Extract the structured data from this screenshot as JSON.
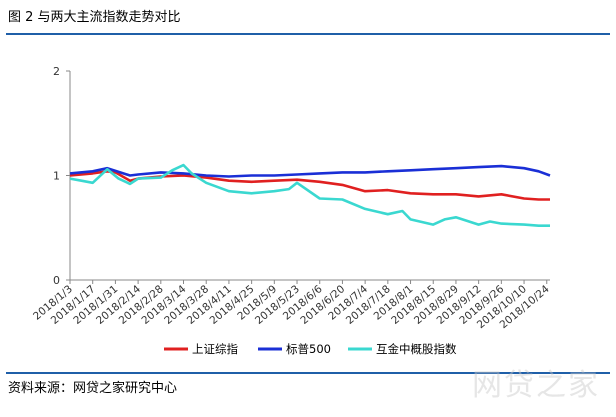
{
  "header": {
    "title": "图 2  与两大主流指数走势对比"
  },
  "footer": {
    "source": "资料来源：网贷之家研究中心",
    "watermark": "网贷之家"
  },
  "colors": {
    "rule": "#1f5fa8"
  },
  "chart_data": {
    "type": "line",
    "title": "",
    "xlabel": "",
    "ylabel": "",
    "ylim": [
      0,
      2
    ],
    "yticks": [
      0,
      1,
      2
    ],
    "grid": false,
    "legend_position": "bottom",
    "x_start": "2018/1/3",
    "x_end": "2018/10/26",
    "xticks": [
      "2018/1/3",
      "2018/1/17",
      "2018/1/31",
      "2018/2/14",
      "2018/2/28",
      "2018/3/14",
      "2018/3/28",
      "2018/4/11",
      "2018/4/25",
      "2018/5/9",
      "2018/5/23",
      "2018/6/6",
      "2018/6/20",
      "2018/7/4",
      "2018/7/18",
      "2018/8/1",
      "2018/8/15",
      "2018/8/29",
      "2018/9/12",
      "2018/9/26",
      "2018/10/10",
      "2018/10/24"
    ],
    "series": [
      {
        "name": "上证综指",
        "color": "#e02020",
        "x": [
          "2018/1/3",
          "2018/1/17",
          "2018/1/26",
          "2018/1/31",
          "2018/2/9",
          "2018/2/14",
          "2018/2/28",
          "2018/3/14",
          "2018/3/28",
          "2018/4/11",
          "2018/4/25",
          "2018/5/9",
          "2018/5/23",
          "2018/6/6",
          "2018/6/20",
          "2018/7/4",
          "2018/7/18",
          "2018/8/1",
          "2018/8/15",
          "2018/8/29",
          "2018/9/12",
          "2018/9/26",
          "2018/10/10",
          "2018/10/19",
          "2018/10/26"
        ],
        "y": [
          1.0,
          1.02,
          1.04,
          1.03,
          0.95,
          0.97,
          0.99,
          1.0,
          0.98,
          0.95,
          0.94,
          0.95,
          0.96,
          0.94,
          0.91,
          0.85,
          0.86,
          0.83,
          0.82,
          0.82,
          0.8,
          0.82,
          0.78,
          0.77,
          0.77
        ]
      },
      {
        "name": "标普500",
        "color": "#1a2fd6",
        "x": [
          "2018/1/3",
          "2018/1/17",
          "2018/1/26",
          "2018/2/9",
          "2018/2/14",
          "2018/2/28",
          "2018/3/14",
          "2018/3/28",
          "2018/4/11",
          "2018/4/25",
          "2018/5/9",
          "2018/5/23",
          "2018/6/6",
          "2018/6/20",
          "2018/7/4",
          "2018/7/18",
          "2018/8/1",
          "2018/8/15",
          "2018/8/29",
          "2018/9/12",
          "2018/9/26",
          "2018/10/10",
          "2018/10/19",
          "2018/10/26"
        ],
        "y": [
          1.02,
          1.04,
          1.07,
          1.0,
          1.01,
          1.03,
          1.02,
          1.0,
          0.99,
          1.0,
          1.0,
          1.01,
          1.02,
          1.03,
          1.03,
          1.04,
          1.05,
          1.06,
          1.07,
          1.08,
          1.09,
          1.07,
          1.04,
          1.0
        ]
      },
      {
        "name": "互金中概股指数",
        "color": "#3ad8d0",
        "x": [
          "2018/1/3",
          "2018/1/10",
          "2018/1/17",
          "2018/1/26",
          "2018/2/2",
          "2018/2/9",
          "2018/2/14",
          "2018/2/28",
          "2018/3/7",
          "2018/3/14",
          "2018/3/19",
          "2018/3/28",
          "2018/4/11",
          "2018/4/25",
          "2018/5/9",
          "2018/5/18",
          "2018/5/23",
          "2018/6/6",
          "2018/6/20",
          "2018/7/4",
          "2018/7/18",
          "2018/7/27",
          "2018/8/1",
          "2018/8/15",
          "2018/8/22",
          "2018/8/29",
          "2018/9/12",
          "2018/9/19",
          "2018/9/26",
          "2018/10/10",
          "2018/10/19",
          "2018/10/26"
        ],
        "y": [
          0.97,
          0.95,
          0.93,
          1.06,
          0.97,
          0.92,
          0.97,
          0.98,
          1.05,
          1.1,
          1.02,
          0.93,
          0.85,
          0.83,
          0.85,
          0.87,
          0.93,
          0.78,
          0.77,
          0.68,
          0.63,
          0.66,
          0.58,
          0.53,
          0.58,
          0.6,
          0.53,
          0.56,
          0.54,
          0.53,
          0.52,
          0.52
        ]
      }
    ]
  }
}
